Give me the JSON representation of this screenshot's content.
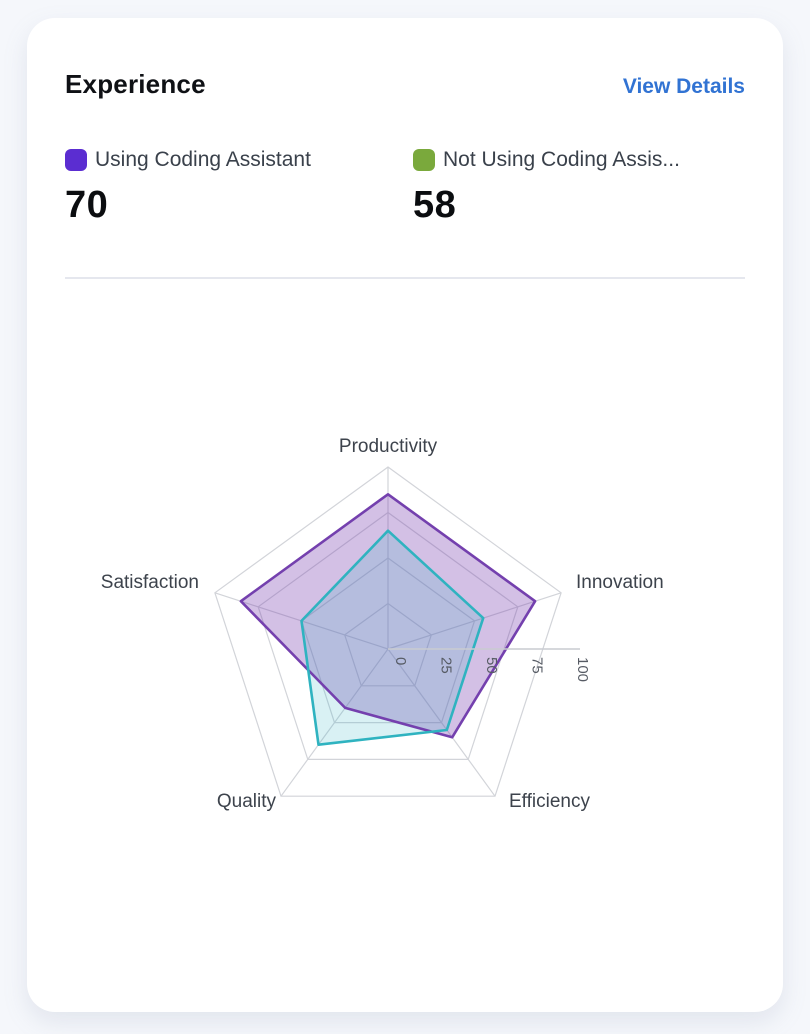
{
  "header": {
    "title": "Experience",
    "action_label": "View Details"
  },
  "legend": [
    {
      "label": "Using Coding Assistant",
      "value": "70",
      "swatch_color": "#5b2dd1"
    },
    {
      "label": "Not Using Coding Assis...",
      "value": "58",
      "swatch_color": "#7aa93c"
    }
  ],
  "chart_data": {
    "type": "radar",
    "categories": [
      "Productivity",
      "Innovation",
      "Efficiency",
      "Quality",
      "Satisfaction"
    ],
    "series": [
      {
        "name": "Using Coding Assistant",
        "values": [
          85,
          85,
          60,
          40,
          85
        ],
        "stroke": "#7440ae",
        "fill": "rgba(122,64,177,0.33)"
      },
      {
        "name": "Not Using Coding Assistant",
        "values": [
          65,
          55,
          55,
          65,
          50
        ],
        "stroke": "#2fb3c0",
        "fill": "rgba(47,179,192,0.18)"
      }
    ],
    "radial_ticks": [
      0,
      25,
      50,
      75,
      100
    ],
    "max": 100,
    "grid_on": true,
    "grid_color": "#d2d4d9",
    "radius_axis_color": "#c9cbd1",
    "legend_position": "top"
  }
}
